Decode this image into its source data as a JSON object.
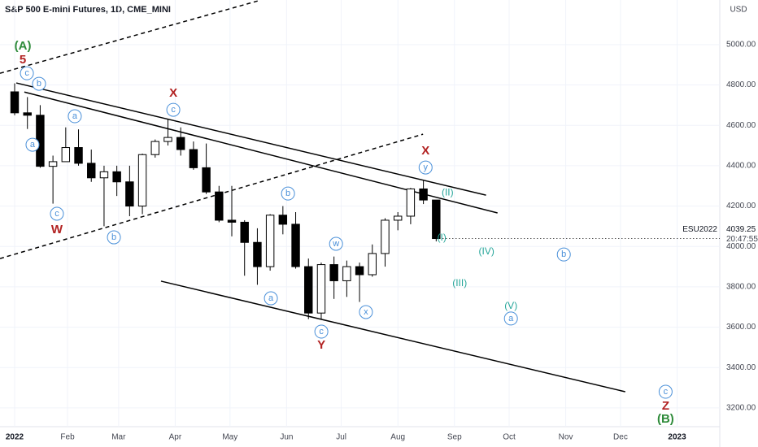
{
  "chart_data": {
    "type": "candlestick",
    "title": "S&P 500 E-mini Futures, 1D, CME_MINI",
    "currency": "USD",
    "symbol": "ESU2022",
    "last_price": 4039.25,
    "last_price_label": "4039.25",
    "countdown": "20:47:55",
    "up_color": "#ffffff",
    "down_color": "#000000",
    "x": [
      0,
      1,
      2,
      3,
      4,
      5,
      6,
      7,
      8,
      9,
      10,
      11,
      12,
      13,
      14,
      15,
      16,
      17,
      18,
      19,
      20,
      21,
      22,
      23,
      24,
      25,
      26,
      27,
      28,
      29,
      30,
      31,
      32,
      33
    ],
    "open": [
      4766,
      4662,
      4650,
      4397,
      4420,
      4490,
      4412,
      4340,
      4370,
      4320,
      4200,
      4455,
      4520,
      4540,
      4480,
      4390,
      4270,
      4130,
      4120,
      4020,
      3900,
      4155,
      4110,
      3900,
      3670,
      3910,
      3830,
      3900,
      3860,
      3965,
      4130,
      4150,
      4285,
      4230
    ],
    "high": [
      4808,
      4740,
      4700,
      4450,
      4590,
      4580,
      4480,
      4400,
      4400,
      4400,
      4460,
      4530,
      4630,
      4590,
      4520,
      4510,
      4300,
      4300,
      4130,
      4090,
      4160,
      4200,
      4170,
      3940,
      3920,
      3950,
      3930,
      3920,
      4010,
      4140,
      4170,
      4290,
      4325,
      4230
    ],
    "low": [
      4650,
      4582,
      4390,
      4212,
      4420,
      4400,
      4320,
      4100,
      4250,
      4150,
      4160,
      4440,
      4500,
      4450,
      4380,
      4260,
      4120,
      4050,
      3855,
      3810,
      3880,
      4060,
      3890,
      3640,
      3640,
      3740,
      3750,
      3725,
      3850,
      3900,
      4080,
      4110,
      4210,
      4025
    ],
    "close": [
      4662,
      4650,
      4397,
      4420,
      4490,
      4412,
      4340,
      4370,
      4320,
      4200,
      4455,
      4520,
      4540,
      4480,
      4390,
      4270,
      4130,
      4120,
      4020,
      3900,
      4155,
      4110,
      3900,
      3670,
      3910,
      3830,
      3900,
      3860,
      3965,
      4130,
      4150,
      4285,
      4230,
      4039
    ],
    "xlim": [
      -1.146,
      55.2
    ],
    "ylim": [
      3107,
      5221
    ],
    "xticks": [
      {
        "value": 0,
        "label": "2022"
      },
      {
        "value": 4.14,
        "label": "Feb"
      },
      {
        "value": 8.14,
        "label": "Mar"
      },
      {
        "value": 12.57,
        "label": "Apr"
      },
      {
        "value": 16.86,
        "label": "May"
      },
      {
        "value": 21.29,
        "label": "Jun"
      },
      {
        "value": 25.57,
        "label": "Jul"
      },
      {
        "value": 30,
        "label": "Aug"
      },
      {
        "value": 34.43,
        "label": "Sep"
      },
      {
        "value": 38.71,
        "label": "Oct"
      },
      {
        "value": 43.14,
        "label": "Nov"
      },
      {
        "value": 47.43,
        "label": "Dec"
      },
      {
        "value": 51.86,
        "label": "2023"
      }
    ],
    "yticks": [
      {
        "value": 3200,
        "label": "3200.00"
      },
      {
        "value": 3400,
        "label": "3400.00"
      },
      {
        "value": 3600,
        "label": "3600.00"
      },
      {
        "value": 3800,
        "label": "3800.00"
      },
      {
        "value": 4000,
        "label": "4000.00"
      },
      {
        "value": 4200,
        "label": "4200.00"
      },
      {
        "value": 4400,
        "label": "4400.00"
      },
      {
        "value": 4600,
        "label": "4600.00"
      },
      {
        "value": 4800,
        "label": "4800.00"
      },
      {
        "value": 5000,
        "label": "5000.00"
      }
    ],
    "grid": true,
    "trendlines": [
      {
        "points": [
          [
            0.13,
            4810
          ],
          [
            36.9,
            4254
          ]
        ],
        "dashed": false
      },
      {
        "points": [
          [
            0.76,
            4765
          ],
          [
            37.8,
            4166
          ]
        ],
        "dashed": false
      },
      {
        "points": [
          [
            11.46,
            3828
          ],
          [
            47.8,
            3280
          ]
        ],
        "dashed": false
      },
      {
        "points": [
          [
            -1.146,
            4858
          ],
          [
            19.24,
            5220
          ]
        ],
        "dashed": true
      },
      {
        "points": [
          [
            -1.146,
            3940
          ],
          [
            31.97,
            4556
          ]
        ],
        "dashed": true
      }
    ],
    "annotation_colors": {
      "green": "#2e8b3a",
      "red": "#b22222",
      "circle": "#4a90d9",
      "teal": "#26a69a"
    },
    "annotations": [
      {
        "text": "(A)",
        "x": 0.64,
        "y": 4991,
        "style": "green"
      },
      {
        "text": "5",
        "x": 0.64,
        "y": 4922,
        "style": "red"
      },
      {
        "text": "c",
        "x": 0.96,
        "y": 4858,
        "style": "circle"
      },
      {
        "text": "b",
        "x": 1.91,
        "y": 4806,
        "style": "circle"
      },
      {
        "text": "a",
        "x": 1.4,
        "y": 4504,
        "style": "circle"
      },
      {
        "text": "c",
        "x": 3.31,
        "y": 4162,
        "style": "circle"
      },
      {
        "text": "W",
        "x": 3.31,
        "y": 4081,
        "style": "red"
      },
      {
        "text": "a",
        "x": 4.71,
        "y": 4645,
        "style": "circle"
      },
      {
        "text": "b",
        "x": 7.77,
        "y": 4045,
        "style": "circle"
      },
      {
        "text": "X",
        "x": 12.42,
        "y": 4757,
        "style": "red"
      },
      {
        "text": "c",
        "x": 12.42,
        "y": 4677,
        "style": "circle"
      },
      {
        "text": "b",
        "x": 21.4,
        "y": 4262,
        "style": "circle"
      },
      {
        "text": "a",
        "x": 20.06,
        "y": 3743,
        "style": "circle"
      },
      {
        "text": "w",
        "x": 25.16,
        "y": 4013,
        "style": "circle"
      },
      {
        "text": "c",
        "x": 24.01,
        "y": 3578,
        "style": "circle"
      },
      {
        "text": "Y",
        "x": 24.01,
        "y": 3510,
        "style": "red"
      },
      {
        "text": "x",
        "x": 27.5,
        "y": 3675,
        "style": "circle"
      },
      {
        "text": "X",
        "x": 32.17,
        "y": 4472,
        "style": "red"
      },
      {
        "text": "y",
        "x": 32.17,
        "y": 4391,
        "style": "circle"
      },
      {
        "text": "(II)",
        "x": 33.89,
        "y": 4266,
        "style": "teal"
      },
      {
        "text": "(I)",
        "x": 33.44,
        "y": 4041,
        "style": "teal"
      },
      {
        "text": "(IV)",
        "x": 36.94,
        "y": 3973,
        "style": "teal"
      },
      {
        "text": "(III)",
        "x": 34.84,
        "y": 3816,
        "style": "teal"
      },
      {
        "text": "b",
        "x": 42.99,
        "y": 3960,
        "style": "circle"
      },
      {
        "text": "(V)",
        "x": 38.85,
        "y": 3703,
        "style": "teal"
      },
      {
        "text": "a",
        "x": 38.85,
        "y": 3643,
        "style": "circle"
      },
      {
        "text": "c",
        "x": 50.96,
        "y": 3280,
        "style": "circle"
      },
      {
        "text": "Z",
        "x": 50.96,
        "y": 3208,
        "style": "red"
      },
      {
        "text": "(B)",
        "x": 50.96,
        "y": 3144,
        "style": "green"
      }
    ]
  }
}
